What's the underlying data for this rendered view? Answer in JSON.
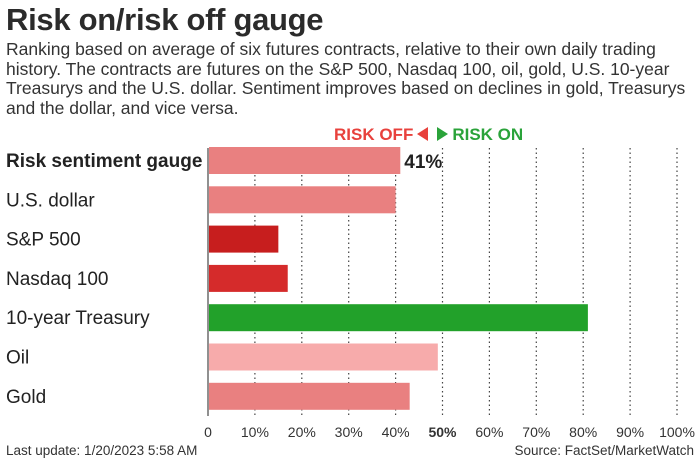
{
  "chart_data": {
    "type": "bar",
    "orientation": "horizontal",
    "title": "Risk on/risk off gauge",
    "subtitle": "Ranking based on average of six futures contracts, relative to their own daily trading history. The contracts are futures on the S&P 500, Nasdaq 100, oil, gold, U.S. 10-year Treasurys and the U.S. dollar. Sentiment improves based on declines in gold, Treasurys and the dollar, and vice versa.",
    "legend": {
      "risk_off": "RISK OFF",
      "risk_on": "RISK ON",
      "risk_off_color": "#e8413c",
      "risk_on_color": "#2aa33a"
    },
    "categories": [
      "Risk sentiment gauge",
      "U.S. dollar",
      "S&P 500",
      "Nasdaq 100",
      "10-year Treasury",
      "Oil",
      "Gold"
    ],
    "values": [
      41,
      40,
      15,
      17,
      81,
      49,
      43
    ],
    "colors": [
      "#e98080",
      "#e98080",
      "#c71e1e",
      "#d52b2b",
      "#22a12a",
      "#f7abab",
      "#e98080"
    ],
    "bold_categories": [
      "Risk sentiment gauge"
    ],
    "data_labels": [
      {
        "category": "Risk sentiment gauge",
        "label": "41%"
      }
    ],
    "xlim": [
      0,
      100
    ],
    "xticks": [
      "0",
      "10%",
      "20%",
      "30%",
      "40%",
      "50%",
      "60%",
      "70%",
      "80%",
      "90%",
      "100%"
    ],
    "bold_ticks": [
      "50%"
    ],
    "grid": "vertical dotted"
  },
  "footer": {
    "last_update": "Last update: 1/20/2023 5:58 AM",
    "source": "Source: FactSet/MarketWatch"
  }
}
